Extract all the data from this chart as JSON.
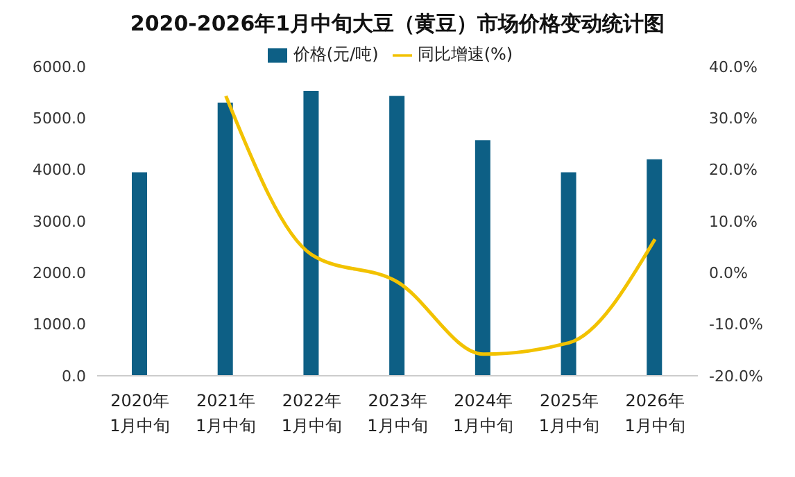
{
  "chart_data": {
    "type": "bar",
    "title": "2020-2026年1月中旬大豆（黄豆）市场价格变动统计图",
    "categories": [
      "2020年\n1月中旬",
      "2021年\n1月中旬",
      "2022年\n1月中旬",
      "2023年\n1月中旬",
      "2024年\n1月中旬",
      "2025年\n1月中旬",
      "2026年\n1月中旬"
    ],
    "series": [
      {
        "name": "价格(元/吨)",
        "color": "#0d5f85",
        "values": [
          3950,
          5300,
          5530,
          5430,
          4570,
          3950,
          4200
        ]
      },
      {
        "name": "同比增速(%)",
        "type": "line",
        "axis": "y2",
        "color": "#f2c200",
        "values": [
          null,
          34.3,
          3.5,
          -1.8,
          -15.8,
          -13.6,
          6.5
        ]
      }
    ],
    "ylim": [
      0,
      6000
    ],
    "yticks": [
      {
        "value": 0,
        "label": "0.0"
      },
      {
        "value": 1000,
        "label": "1000.0"
      },
      {
        "value": 2000,
        "label": "2000.0"
      },
      {
        "value": 3000,
        "label": "3000.0"
      },
      {
        "value": 4000,
        "label": "4000.0"
      },
      {
        "value": 5000,
        "label": "5000.0"
      },
      {
        "value": 6000,
        "label": "6000.0"
      }
    ],
    "y2lim": [
      -20,
      40
    ],
    "y2ticks": [
      {
        "value": -20,
        "label": "-20.0%"
      },
      {
        "value": -10,
        "label": "-10.0%"
      },
      {
        "value": 0,
        "label": "0.0%"
      },
      {
        "value": 10,
        "label": "10.0%"
      },
      {
        "value": 20,
        "label": "20.0%"
      },
      {
        "value": 30,
        "label": "30.0%"
      },
      {
        "value": 40,
        "label": "40.0%"
      }
    ],
    "legend": "top",
    "grid": false,
    "marker": "none"
  }
}
